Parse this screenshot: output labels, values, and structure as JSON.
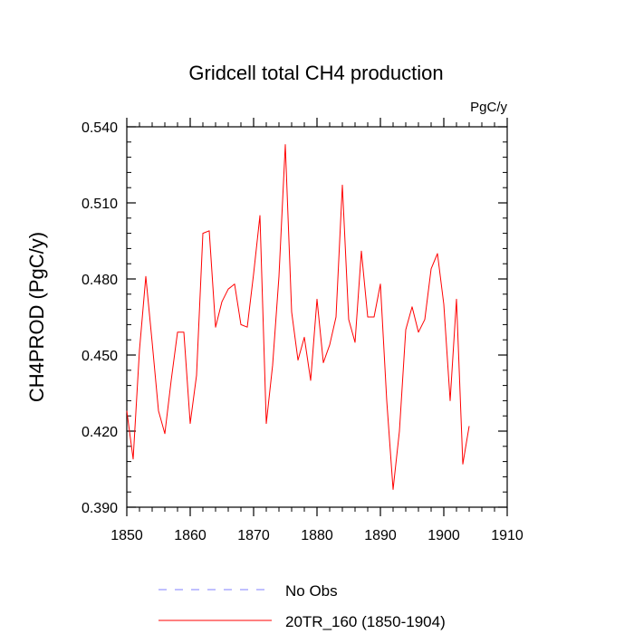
{
  "chart_data": {
    "type": "line",
    "title": "Gridcell total CH4 production",
    "units": "PgC/y",
    "xlabel": "",
    "ylabel": "CH4PROD  (PgC/y)",
    "xlim": [
      1850,
      1910
    ],
    "ylim": [
      0.39,
      0.54
    ],
    "xticks": [
      1850,
      1860,
      1870,
      1880,
      1890,
      1900,
      1910
    ],
    "yticks": [
      0.39,
      0.42,
      0.45,
      0.48,
      0.51,
      0.54
    ],
    "ytick_labels": [
      "0.390",
      "0.420",
      "0.450",
      "0.480",
      "0.510",
      "0.540"
    ],
    "grid": false,
    "legend_position": "bottom-center",
    "series": [
      {
        "name": "20TR_160 (1850-1904)",
        "color": "#ff0000",
        "style": "solid",
        "x": [
          1850,
          1851,
          1852,
          1853,
          1854,
          1855,
          1856,
          1857,
          1858,
          1859,
          1860,
          1861,
          1862,
          1863,
          1864,
          1865,
          1866,
          1867,
          1868,
          1869,
          1870,
          1871,
          1872,
          1873,
          1874,
          1875,
          1876,
          1877,
          1878,
          1879,
          1880,
          1881,
          1882,
          1883,
          1884,
          1885,
          1886,
          1887,
          1888,
          1889,
          1890,
          1891,
          1892,
          1893,
          1894,
          1895,
          1896,
          1897,
          1898,
          1899,
          1900,
          1901,
          1902,
          1903,
          1904
        ],
        "values": [
          0.428,
          0.409,
          0.452,
          0.481,
          0.455,
          0.428,
          0.419,
          0.44,
          0.459,
          0.459,
          0.423,
          0.442,
          0.498,
          0.499,
          0.461,
          0.471,
          0.476,
          0.478,
          0.462,
          0.461,
          0.482,
          0.505,
          0.423,
          0.446,
          0.481,
          0.533,
          0.467,
          0.448,
          0.457,
          0.44,
          0.472,
          0.447,
          0.454,
          0.465,
          0.517,
          0.464,
          0.455,
          0.491,
          0.465,
          0.465,
          0.478,
          0.432,
          0.397,
          0.42,
          0.46,
          0.469,
          0.459,
          0.464,
          0.484,
          0.49,
          0.47,
          0.432,
          0.472,
          0.407,
          0.422
        ]
      }
    ],
    "legend": [
      {
        "label": "No Obs",
        "color": "#8080ff",
        "style": "dashed"
      },
      {
        "label": "20TR_160 (1850-1904)",
        "color": "#ff0000",
        "style": "solid"
      }
    ]
  }
}
